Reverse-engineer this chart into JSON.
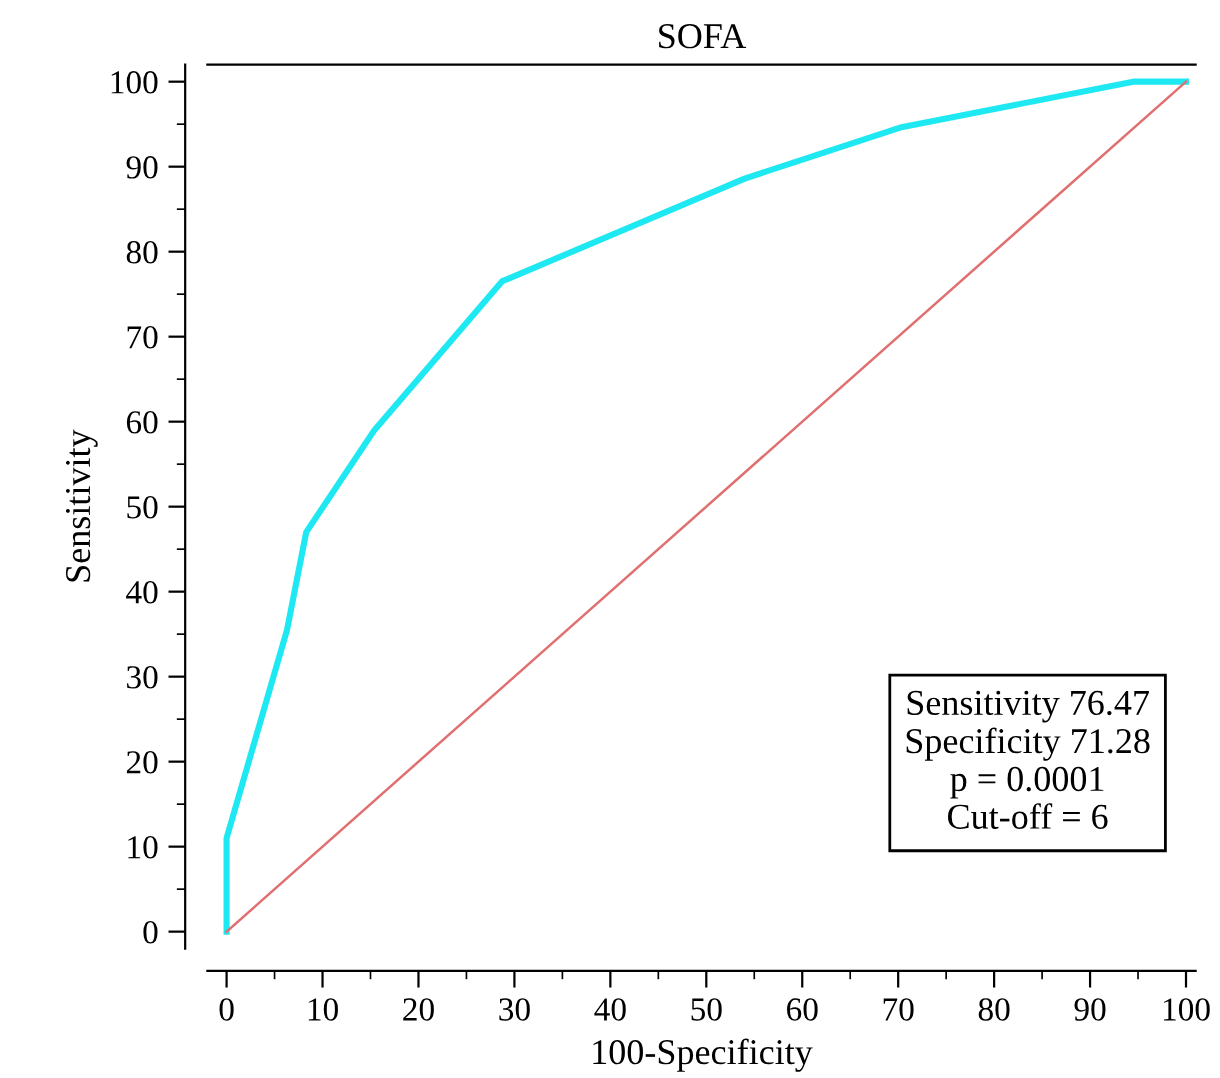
{
  "chart_data": {
    "type": "line",
    "title": "SOFA",
    "xlabel": "100-Specificity",
    "ylabel": "Sensitivity",
    "series": [
      {
        "color": "#1ee8f2",
        "x": [
          0,
          0,
          6.3,
          8.3,
          15.4,
          28.7,
          54,
          70.2,
          94.5,
          100
        ],
        "values": [
          0,
          11,
          35.5,
          47,
          59,
          76.5,
          88.6,
          94.6,
          100,
          100
        ]
      },
      {
        "color": "#e07070",
        "x": [
          0,
          100
        ],
        "values": [
          0,
          100
        ],
        "line_style": "solid"
      }
    ],
    "xlim": [
      -2,
      101
    ],
    "ylim": [
      -2,
      102
    ],
    "xticks": [
      0,
      10,
      20,
      30,
      40,
      50,
      60,
      70,
      80,
      90,
      100
    ],
    "yticks": [
      0,
      10,
      20,
      30,
      40,
      50,
      60,
      70,
      80,
      90,
      100
    ],
    "grid": false,
    "legend": false,
    "marker": "none",
    "annotations": [
      "Sensitivity 76.47",
      "Specificity 71.28",
      "p = 0.0001",
      "Cut-off = 6"
    ]
  }
}
